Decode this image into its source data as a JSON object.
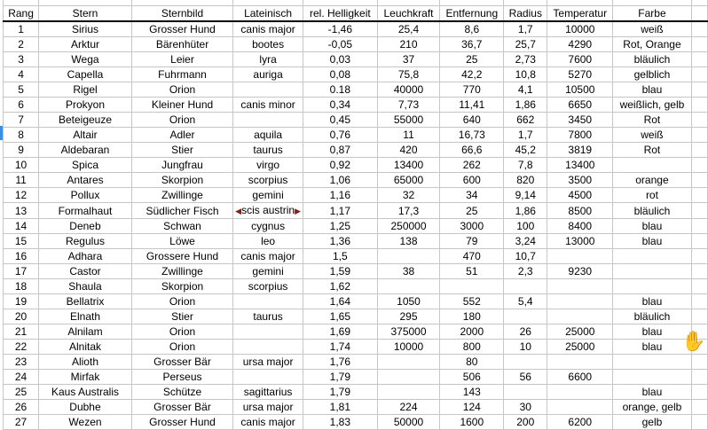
{
  "columns": [
    "Rang",
    "Stern",
    "Sternbild",
    "Lateinisch",
    "rel. Helligkeit",
    "Leuchkraft",
    "Entfernung",
    "Radius",
    "Temperatur",
    "Farbe"
  ],
  "rows": [
    [
      "1",
      "Sirius",
      "Grosser Hund",
      "canis major",
      "-1,46",
      "25,4",
      "8,6",
      "1,7",
      "10000",
      "weiß"
    ],
    [
      "2",
      "Arktur",
      "Bärenhüter",
      "bootes",
      "-0,05",
      "210",
      "36,7",
      "25,7",
      "4290",
      "Rot, Orange"
    ],
    [
      "3",
      "Wega",
      "Leier",
      "lyra",
      "0,03",
      "37",
      "25",
      "2,73",
      "7600",
      "bläulich"
    ],
    [
      "4",
      "Capella",
      "Fuhrmann",
      "auriga",
      "0,08",
      "75,8",
      "42,2",
      "10,8",
      "5270",
      "gelblich"
    ],
    [
      "5",
      "Rigel",
      "Orion",
      "",
      "0.18",
      "40000",
      "770",
      "4,1",
      "10500",
      "blau"
    ],
    [
      "6",
      "Prokyon",
      "Kleiner Hund",
      "canis minor",
      "0,34",
      "7,73",
      "11,41",
      "1,86",
      "6650",
      "weißlich, gelb"
    ],
    [
      "7",
      "Beteigeuze",
      "Orion",
      "",
      "0,45",
      "55000",
      "640",
      "662",
      "3450",
      "Rot"
    ],
    [
      "8",
      "Altair",
      "Adler",
      "aquila",
      "0,76",
      "11",
      "16,73",
      "1,7",
      "7800",
      "weiß"
    ],
    [
      "9",
      "Aldebaran",
      "Stier",
      "taurus",
      "0,87",
      "420",
      "66,6",
      "45,2",
      "3819",
      "Rot"
    ],
    [
      "10",
      "Spica",
      "Jungfrau",
      "virgo",
      "0,92",
      "13400",
      "262",
      "7,8",
      "13400",
      ""
    ],
    [
      "11",
      "Antares",
      "Skorpion",
      "scorpius",
      "1,06",
      "65000",
      "600",
      "820",
      "3500",
      "orange"
    ],
    [
      "12",
      "Pollux",
      "Zwillinge",
      "gemini",
      "1,16",
      "32",
      "34",
      "9,14",
      "4500",
      "rot"
    ],
    [
      "13",
      "Formalhaut",
      "Südlicher Fisch",
      "scis austrin",
      "1,17",
      "17,3",
      "25",
      "1,86",
      "8500",
      "bläulich"
    ],
    [
      "14",
      "Deneb",
      "Schwan",
      "cygnus",
      "1,25",
      "250000",
      "3000",
      "100",
      "8400",
      "blau"
    ],
    [
      "15",
      "Regulus",
      "Löwe",
      "leo",
      "1,36",
      "138",
      "79",
      "3,24",
      "13000",
      "blau"
    ],
    [
      "16",
      "Adhara",
      "Grossere Hund",
      "canis major",
      "1,5",
      "",
      "470",
      "10,7",
      "",
      ""
    ],
    [
      "17",
      "Castor",
      "Zwillinge",
      "gemini",
      "1,59",
      "38",
      "51",
      "2,3",
      "9230",
      ""
    ],
    [
      "18",
      "Shaula",
      "Skorpion",
      "scorpius",
      "1,62",
      "",
      "",
      "",
      "",
      ""
    ],
    [
      "19",
      "Bellatrix",
      "Orion",
      "",
      "1,64",
      "1050",
      "552",
      "5,4",
      "",
      "blau"
    ],
    [
      "20",
      "Elnath",
      "Stier",
      "taurus",
      "1,65",
      "295",
      "180",
      "",
      "",
      "bläulich"
    ],
    [
      "21",
      "Alnilam",
      "Orion",
      "",
      "1,69",
      "375000",
      "2000",
      "26",
      "25000",
      "blau"
    ],
    [
      "22",
      "Alnitak",
      "Orion",
      "",
      "1,74",
      "10000",
      "800",
      "10",
      "25000",
      "blau"
    ],
    [
      "23",
      "Alioth",
      "Grosser Bär",
      "ursa major",
      "1,76",
      "",
      "80",
      "",
      "",
      ""
    ],
    [
      "24",
      "Mirfak",
      "Perseus",
      "",
      "1,79",
      "",
      "506",
      "56",
      "6600",
      ""
    ],
    [
      "25",
      "Kaus Australis",
      "Schütze",
      "sagittarius",
      "1,79",
      "",
      "143",
      "",
      "",
      "blau"
    ],
    [
      "26",
      "Dubhe",
      "Grosser Bär",
      "ursa major",
      "1,81",
      "224",
      "124",
      "30",
      "",
      "orange, gelb"
    ],
    [
      "27",
      "Wezen",
      "Grosser Hund",
      "canis major",
      "1,83",
      "50000",
      "1600",
      "200",
      "6200",
      "gelb"
    ]
  ],
  "selected_row": "8",
  "cursor": "hand-cursor-icon"
}
